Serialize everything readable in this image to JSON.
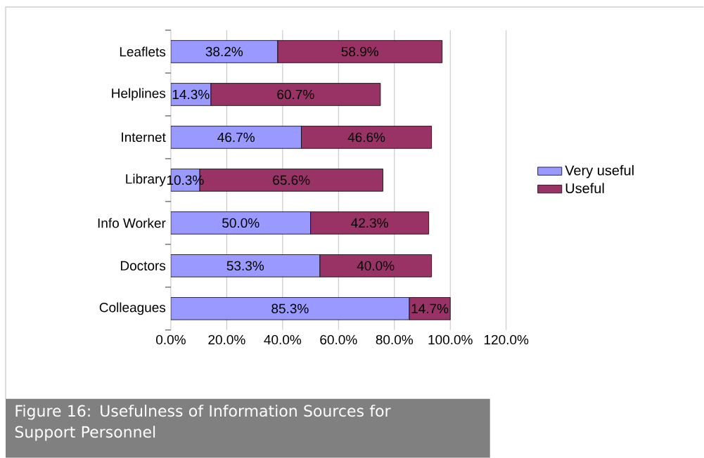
{
  "chart_data": {
    "type": "bar",
    "orientation": "horizontal",
    "stacked": true,
    "categories": [
      "Leaflets",
      "Helplines",
      "Internet",
      "Library",
      "Info Worker",
      "Doctors",
      "Colleagues"
    ],
    "series": [
      {
        "name": "Very useful",
        "color": "#9999ff",
        "values": [
          38.2,
          14.3,
          46.7,
          10.3,
          50.0,
          53.3,
          85.3
        ],
        "value_labels": [
          "38.2%",
          "14.3%",
          "46.7%",
          "10.3%",
          "50.0%",
          "53.3%",
          "85.3%"
        ]
      },
      {
        "name": "Useful",
        "color": "#993366",
        "values": [
          58.9,
          60.7,
          46.6,
          65.6,
          42.3,
          40.0,
          14.7
        ],
        "value_labels": [
          "58.9%",
          "60.7%",
          "46.6%",
          "65.6%",
          "42.3%",
          "40.0%",
          "14.7%"
        ]
      }
    ],
    "xlim": [
      0,
      120
    ],
    "xticks": [
      {
        "value": 0,
        "label": "0.0%"
      },
      {
        "value": 20,
        "label": "20.0%"
      },
      {
        "value": 40,
        "label": "40.0%"
      },
      {
        "value": 60,
        "label": "60.0%"
      },
      {
        "value": 80,
        "label": "80.0%"
      },
      {
        "value": 100,
        "label": "100.0%"
      },
      {
        "value": 120,
        "label": "120.0%"
      }
    ],
    "grid": "x",
    "legend": "right",
    "annotations": [
      "Figure 16: Usefulness of Information Sources for Support Personnel"
    ]
  }
}
